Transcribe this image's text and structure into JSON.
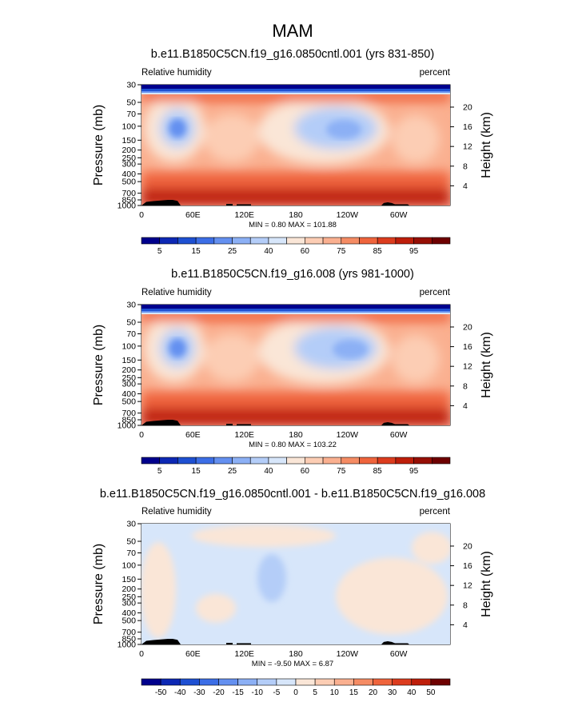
{
  "figure_title": "MAM",
  "chart_data": [
    {
      "type": "heatmap",
      "title": "b.e11.B1850C5CN.f19_g16.0850cntl.001 (yrs 831-850)",
      "left_string": "Relative humidity",
      "right_string": "percent",
      "ylabel": "Pressure (mb)",
      "ylabel_right": "Height (km)",
      "x_ticks": [
        "0",
        "60E",
        "120E",
        "180",
        "120W",
        "60W"
      ],
      "y_ticks": [
        "30",
        "50",
        "70",
        "100",
        "150",
        "200",
        "250",
        "300",
        "400",
        "500",
        "700",
        "850",
        "1000"
      ],
      "y_right_ticks": [
        "20",
        "16",
        "12",
        "8",
        "4"
      ],
      "stats": "MIN =   0.80  MAX = 101.88",
      "min": 0.8,
      "max": 101.88,
      "colorbar_labels": [
        "5",
        "15",
        "25",
        "40",
        "60",
        "75",
        "85",
        "95"
      ],
      "colorbar_colors": [
        "#00008c",
        "#0d28b4",
        "#1e50d2",
        "#3c6ee6",
        "#6490f0",
        "#8cb0f5",
        "#b4cdf8",
        "#d7e6fa",
        "#fae6d7",
        "#fccdb4",
        "#fab090",
        "#f58c64",
        "#ef643c",
        "#dc3c1e",
        "#be1e0a",
        "#960f05",
        "#6e0000"
      ],
      "orography": true
    },
    {
      "type": "heatmap",
      "title": "b.e11.B1850C5CN.f19_g16.008 (yrs 981-1000)",
      "left_string": "Relative humidity",
      "right_string": "percent",
      "ylabel": "Pressure (mb)",
      "ylabel_right": "Height (km)",
      "x_ticks": [
        "0",
        "60E",
        "120E",
        "180",
        "120W",
        "60W"
      ],
      "y_ticks": [
        "30",
        "50",
        "70",
        "100",
        "150",
        "200",
        "250",
        "300",
        "400",
        "500",
        "700",
        "850",
        "1000"
      ],
      "y_right_ticks": [
        "20",
        "16",
        "12",
        "8",
        "4"
      ],
      "stats": "MIN =   0.80  MAX = 103.22",
      "min": 0.8,
      "max": 103.22,
      "colorbar_labels": [
        "5",
        "15",
        "25",
        "40",
        "60",
        "75",
        "85",
        "95"
      ],
      "colorbar_colors": [
        "#00008c",
        "#0d28b4",
        "#1e50d2",
        "#3c6ee6",
        "#6490f0",
        "#8cb0f5",
        "#b4cdf8",
        "#d7e6fa",
        "#fae6d7",
        "#fccdb4",
        "#fab090",
        "#f58c64",
        "#ef643c",
        "#dc3c1e",
        "#be1e0a",
        "#960f05",
        "#6e0000"
      ],
      "orography": true
    },
    {
      "type": "heatmap",
      "title": "b.e11.B1850C5CN.f19_g16.0850cntl.001 - b.e11.B1850C5CN.f19_g16.008",
      "left_string": "Relative humidity",
      "right_string": "percent",
      "ylabel": "Pressure (mb)",
      "ylabel_right": "Height (km)",
      "x_ticks": [
        "0",
        "60E",
        "120E",
        "180",
        "120W",
        "60W"
      ],
      "y_ticks": [
        "30",
        "50",
        "70",
        "100",
        "150",
        "200",
        "250",
        "300",
        "400",
        "500",
        "700",
        "850",
        "1000"
      ],
      "y_right_ticks": [
        "20",
        "16",
        "12",
        "8",
        "4"
      ],
      "stats": "MIN =  -9.50  MAX =   6.87",
      "min": -9.5,
      "max": 6.87,
      "colorbar_labels": [
        "-50",
        "-40",
        "-30",
        "-20",
        "-15",
        "-10",
        "-5",
        "0",
        "5",
        "10",
        "15",
        "20",
        "30",
        "40",
        "50"
      ],
      "colorbar_colors": [
        "#00008c",
        "#0d28b4",
        "#1e50d2",
        "#3c6ee6",
        "#6490f0",
        "#8cb0f5",
        "#b4cdf8",
        "#d7e6fa",
        "#fae6d7",
        "#fccdb4",
        "#fab090",
        "#f58c64",
        "#ef643c",
        "#dc3c1e",
        "#be1e0a",
        "#6e0000"
      ],
      "orography": true
    }
  ]
}
